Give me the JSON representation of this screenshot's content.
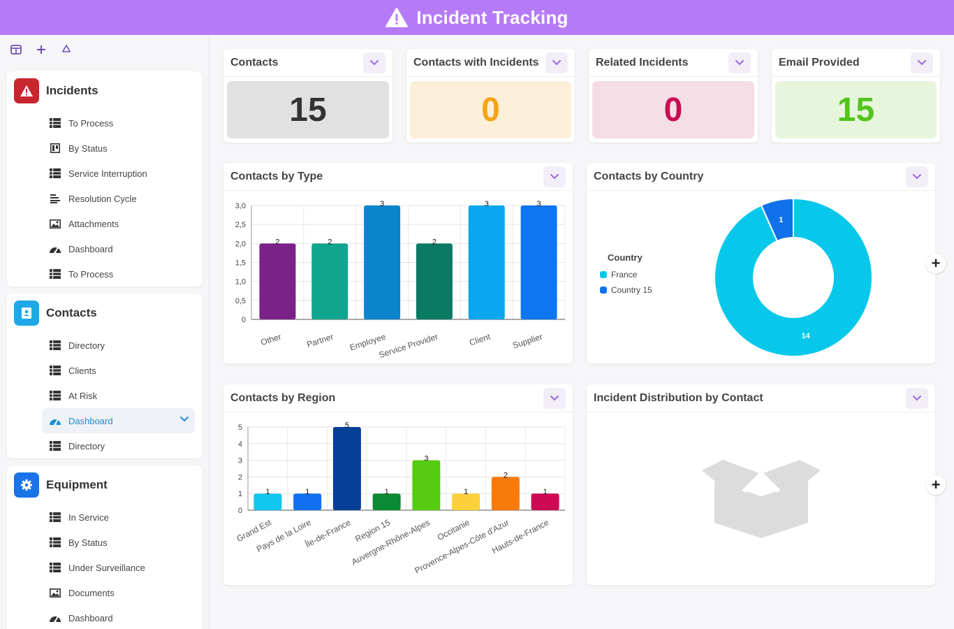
{
  "app": {
    "title": "Incident Tracking"
  },
  "toolbar": {
    "icons": [
      "columns-icon",
      "plus-icon",
      "recycle-icon"
    ]
  },
  "sidebar": {
    "groups": [
      {
        "title": "Incidents",
        "color": "#c8262e",
        "icon": "warning-icon",
        "items": [
          {
            "label": "To Process",
            "icon": "table-icon"
          },
          {
            "label": "By Status",
            "icon": "kanban-icon"
          },
          {
            "label": "Service Interruption",
            "icon": "table-icon"
          },
          {
            "label": "Resolution Cycle",
            "icon": "gantt-icon"
          },
          {
            "label": "Attachments",
            "icon": "image-icon"
          },
          {
            "label": "Dashboard",
            "icon": "gauge-icon"
          },
          {
            "label": "To Process",
            "icon": "table-icon"
          }
        ]
      },
      {
        "title": "Contacts",
        "color": "#1ea8e8",
        "icon": "contact-book-icon",
        "items": [
          {
            "label": "Directory",
            "icon": "table-icon"
          },
          {
            "label": "Clients",
            "icon": "table-icon"
          },
          {
            "label": "At Risk",
            "icon": "table-icon"
          },
          {
            "label": "Dashboard",
            "icon": "gauge-icon",
            "active": true
          },
          {
            "label": "Directory",
            "icon": "table-icon"
          }
        ]
      },
      {
        "title": "Equipment",
        "color": "#1a73e8",
        "icon": "gear-icon",
        "items": [
          {
            "label": "In Service",
            "icon": "table-icon"
          },
          {
            "label": "By Status",
            "icon": "table-icon"
          },
          {
            "label": "Under Surveillance",
            "icon": "table-icon"
          },
          {
            "label": "Documents",
            "icon": "image-icon"
          },
          {
            "label": "Dashboard",
            "icon": "gauge-icon"
          }
        ]
      }
    ]
  },
  "kpis": [
    {
      "title": "Contacts",
      "value": "15",
      "bg": "#e1e1e1",
      "color": "#333333"
    },
    {
      "title": "Contacts with Incidents",
      "value": "0",
      "bg": "#fcefd9",
      "color": "#f7a314"
    },
    {
      "title": "Related Incidents",
      "value": "0",
      "bg": "#f5dde5",
      "color": "#c90b52"
    },
    {
      "title": "Email Provided",
      "value": "15",
      "bg": "#e6f5dc",
      "color": "#52c41a"
    }
  ],
  "panels": {
    "by_type": {
      "title": "Contacts by Type"
    },
    "by_country": {
      "title": "Contacts by Country"
    },
    "by_region": {
      "title": "Contacts by Region"
    },
    "distribution": {
      "title": "Incident Distribution by Contact"
    }
  },
  "chart_data": [
    {
      "type": "bar",
      "title": "Contacts by Type",
      "categories": [
        "Other",
        "Partner",
        "Employee",
        "Service Provider",
        "Client",
        "Supplier"
      ],
      "values": [
        2,
        2,
        3,
        2,
        3,
        3
      ],
      "colors": [
        "#7b2288",
        "#10a58f",
        "#0a84cc",
        "#0b7a63",
        "#08a7ef",
        "#0f76f2"
      ],
      "yticks": [
        "0",
        "0,5",
        "1,0",
        "1,5",
        "2,0",
        "2,5",
        "3,0"
      ],
      "ylim": [
        0,
        3
      ],
      "grid": true
    },
    {
      "type": "pie",
      "title": "Contacts by Country",
      "legend_title": "Country",
      "categories": [
        "France",
        "Country 15"
      ],
      "values": [
        14,
        1
      ],
      "colors": [
        "#07c8ea",
        "#0f72ea"
      ],
      "legend": "left"
    },
    {
      "type": "bar",
      "title": "Contacts by Region",
      "categories": [
        "Grand Est",
        "Pays de la Loire",
        "Île-de-France",
        "Region 15",
        "Auvergne-Rhône-Alpes",
        "Occitanie",
        "Provence-Alpes-Côte d'Azur",
        "Hauts-de-France"
      ],
      "values": [
        1,
        1,
        5,
        1,
        3,
        1,
        2,
        1
      ],
      "colors": [
        "#12c7ee",
        "#0f70f0",
        "#063f98",
        "#0a8a35",
        "#55cc12",
        "#fbd03a",
        "#f87a0a",
        "#cc0952"
      ],
      "yticks": [
        "0",
        "1",
        "2",
        "3",
        "4",
        "5"
      ],
      "ylim": [
        0,
        5
      ],
      "grid": true
    }
  ]
}
